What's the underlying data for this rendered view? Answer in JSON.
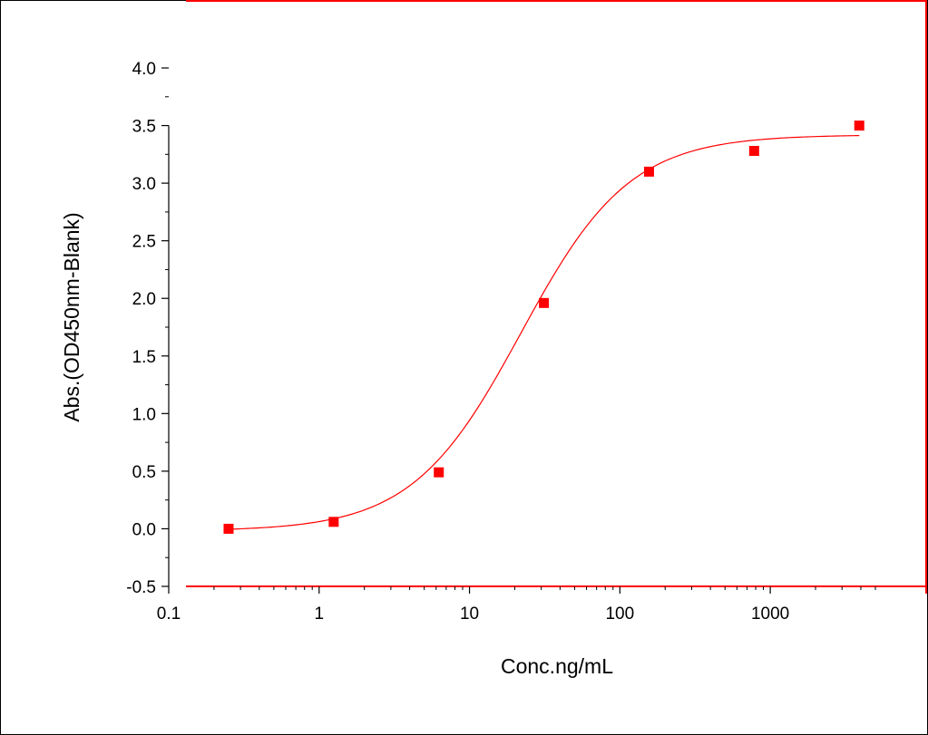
{
  "chart_data": {
    "type": "scatter",
    "title": "",
    "xlabel": "Conc.ng/mL",
    "ylabel": "Abs.(OD450nm-Blank)",
    "x_scale": "log",
    "xlim": [
      0.1,
      5000
    ],
    "ylim": [
      -0.5,
      4.0
    ],
    "x_ticks": [
      {
        "value": 0.1,
        "label": "0.1"
      },
      {
        "value": 1,
        "label": "1"
      },
      {
        "value": 10,
        "label": "10"
      },
      {
        "value": 100,
        "label": "100"
      },
      {
        "value": 1000,
        "label": "1000"
      }
    ],
    "y_ticks": [
      {
        "value": 4.0,
        "label": "4.0"
      },
      {
        "value": 3.5,
        "label": "3.5"
      },
      {
        "value": 3.0,
        "label": "3.0"
      },
      {
        "value": 2.5,
        "label": "2.5"
      },
      {
        "value": 2.0,
        "label": "2.0"
      },
      {
        "value": 1.5,
        "label": "1.5"
      },
      {
        "value": 1.0,
        "label": "1.0"
      },
      {
        "value": 0.5,
        "label": "0.5"
      },
      {
        "value": 0.0,
        "label": "0.0"
      },
      {
        "value": -0.5,
        "label": "-0.5"
      }
    ],
    "grid": false,
    "legend": "none",
    "series": [
      {
        "points": [
          {
            "x": 0.25,
            "y": 0.0
          },
          {
            "x": 1.25,
            "y": 0.06
          },
          {
            "x": 6.25,
            "y": 0.49
          },
          {
            "x": 31.25,
            "y": 1.96
          },
          {
            "x": 156.25,
            "y": 3.1
          },
          {
            "x": 781.25,
            "y": 3.28
          },
          {
            "x": 3906.25,
            "y": 3.5
          }
        ],
        "marker": "square",
        "color": "#ff0000"
      }
    ],
    "fit_curve": {
      "type": "4PL",
      "bottom": -0.02,
      "top": 3.42,
      "ec50": 22,
      "hill": 1.2,
      "color": "#ff0000"
    },
    "colors": {
      "axis": "#000000",
      "data": "#ff0000",
      "frame_accent": "#ff0000"
    }
  }
}
